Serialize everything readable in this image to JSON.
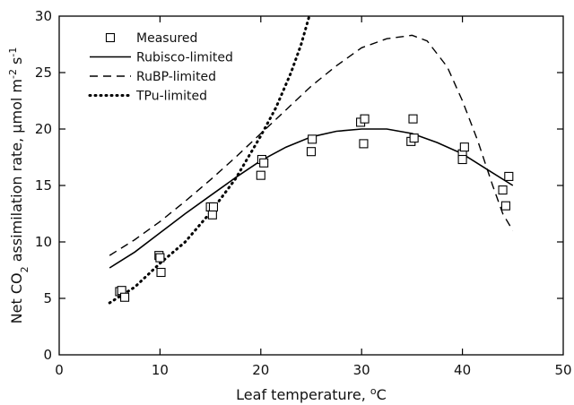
{
  "chart_data": {
    "type": "scatter",
    "xlabel": "Leaf temperature, °C",
    "ylabel": "Net CO2 assimilation rate, μmol m-2 s-1",
    "xlim": [
      0,
      50
    ],
    "ylim": [
      0,
      30
    ],
    "x_ticks": [
      "0",
      "10",
      "20",
      "30",
      "40",
      "50"
    ],
    "y_ticks": [
      "0",
      "5",
      "10",
      "15",
      "20",
      "25",
      "30"
    ],
    "grid": false,
    "legend": "top-left",
    "series": [
      {
        "name": "Measured",
        "kind": "markers",
        "marker": "open-square",
        "points": [
          [
            6.0,
            5.6
          ],
          [
            6.2,
            5.7
          ],
          [
            6.5,
            5.1
          ],
          [
            9.9,
            8.8
          ],
          [
            10.0,
            8.6
          ],
          [
            10.1,
            7.3
          ],
          [
            15.0,
            13.1
          ],
          [
            15.2,
            12.4
          ],
          [
            15.3,
            13.1
          ],
          [
            20.1,
            17.3
          ],
          [
            20.0,
            15.9
          ],
          [
            20.3,
            17.0
          ],
          [
            25.1,
            19.1
          ],
          [
            25.0,
            18.0
          ],
          [
            29.9,
            20.6
          ],
          [
            30.3,
            20.9
          ],
          [
            30.2,
            18.7
          ],
          [
            34.9,
            18.9
          ],
          [
            35.1,
            20.9
          ],
          [
            35.2,
            19.2
          ],
          [
            40.0,
            17.8
          ],
          [
            40.0,
            17.3
          ],
          [
            40.2,
            18.4
          ],
          [
            44.0,
            14.6
          ],
          [
            44.3,
            13.2
          ],
          [
            44.6,
            15.8
          ]
        ]
      },
      {
        "name": "Rubisco-limited",
        "kind": "line",
        "dash": "solid",
        "points": [
          [
            5,
            7.7
          ],
          [
            7.5,
            9.1
          ],
          [
            10,
            10.8
          ],
          [
            12.5,
            12.5
          ],
          [
            15,
            14.1
          ],
          [
            17.5,
            15.7
          ],
          [
            20,
            17.2
          ],
          [
            22.5,
            18.4
          ],
          [
            25,
            19.3
          ],
          [
            27.5,
            19.8
          ],
          [
            30,
            20.0
          ],
          [
            32.5,
            20.0
          ],
          [
            35,
            19.6
          ],
          [
            37.5,
            18.8
          ],
          [
            40,
            17.8
          ],
          [
            42.5,
            16.4
          ],
          [
            45,
            15.0
          ]
        ]
      },
      {
        "name": "RuBP-limited",
        "kind": "line",
        "dash": "dashed",
        "points": [
          [
            5,
            8.8
          ],
          [
            7.5,
            10.2
          ],
          [
            10,
            11.8
          ],
          [
            12.5,
            13.6
          ],
          [
            15,
            15.5
          ],
          [
            17.5,
            17.5
          ],
          [
            20,
            19.6
          ],
          [
            22.5,
            21.7
          ],
          [
            25,
            23.8
          ],
          [
            27.5,
            25.6
          ],
          [
            30,
            27.2
          ],
          [
            32.5,
            28.0
          ],
          [
            35,
            28.3
          ],
          [
            36.5,
            27.8
          ],
          [
            38.5,
            25.5
          ],
          [
            40,
            22.5
          ],
          [
            41.5,
            19.0
          ],
          [
            43,
            15.0
          ],
          [
            44,
            12.5
          ],
          [
            45,
            11.0
          ]
        ]
      },
      {
        "name": "TPu-limited",
        "kind": "line",
        "dash": "dotted",
        "points": [
          [
            5,
            4.6
          ],
          [
            7.5,
            6.0
          ],
          [
            10,
            8.1
          ],
          [
            12.5,
            10.0
          ],
          [
            15,
            12.6
          ],
          [
            17.5,
            15.6
          ],
          [
            20,
            19.4
          ],
          [
            21.5,
            21.9
          ],
          [
            23,
            25.0
          ],
          [
            24,
            27.5
          ],
          [
            24.8,
            30.0
          ]
        ]
      }
    ]
  }
}
